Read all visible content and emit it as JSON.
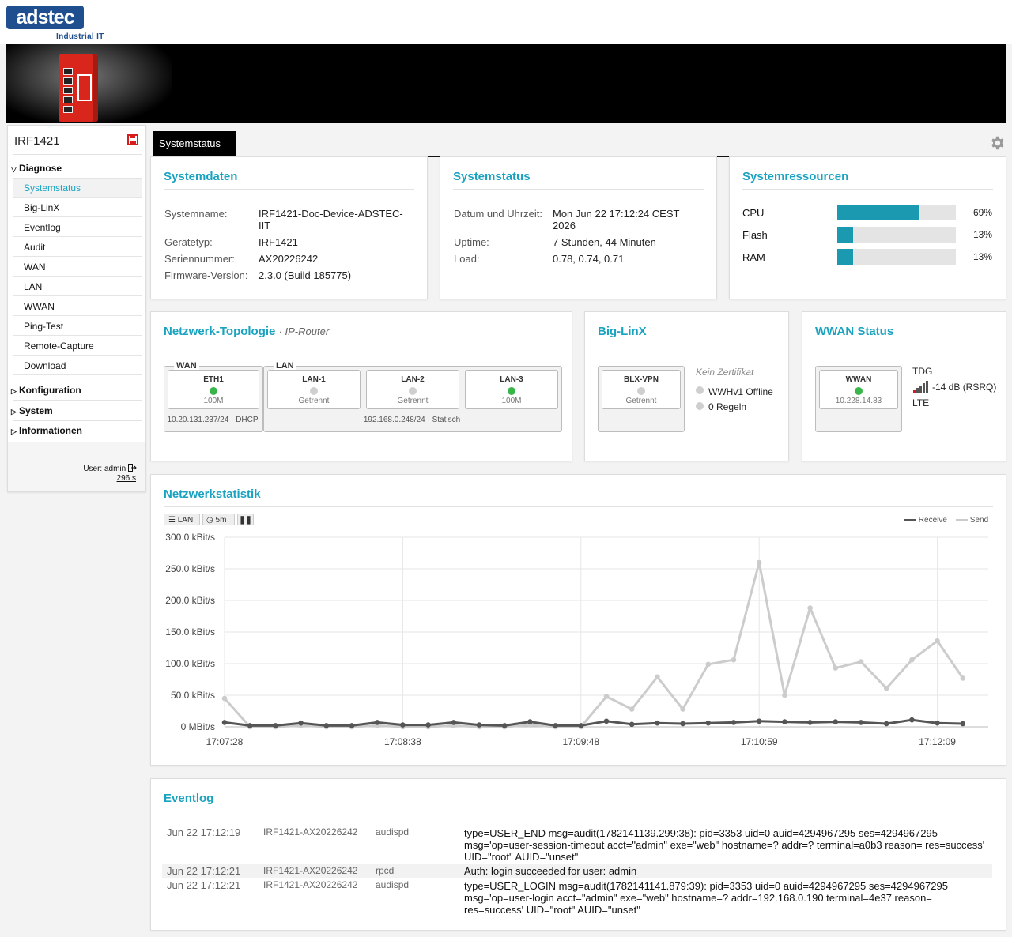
{
  "brand": {
    "logo": "adstec",
    "tagline": "Industrial IT"
  },
  "sidebar": {
    "device_name": "IRF1421",
    "groups": {
      "diagnose": "Diagnose",
      "konfiguration": "Konfiguration",
      "system": "System",
      "informationen": "Informationen"
    },
    "items": [
      "Systemstatus",
      "Big-LinX",
      "Eventlog",
      "Audit",
      "WAN",
      "LAN",
      "WWAN",
      "Ping-Test",
      "Remote-Capture",
      "Download"
    ],
    "active_item": "Systemstatus",
    "user": "User: admin",
    "timer": "296 s"
  },
  "tabs": {
    "active": "Systemstatus"
  },
  "systemdaten": {
    "title": "Systemdaten",
    "rows": [
      {
        "label": "Systemname:",
        "value": "IRF1421-Doc-Device-ADSTEC-IIT"
      },
      {
        "label": "Gerätetyp:",
        "value": "IRF1421"
      },
      {
        "label": "Seriennummer:",
        "value": "AX20226242"
      },
      {
        "label": "Firmware-Version:",
        "value": "2.3.0 (Build 185775)"
      }
    ]
  },
  "systemstatus": {
    "title": "Systemstatus",
    "rows": [
      {
        "label": "Datum und Uhrzeit:",
        "value": "Mon Jun 22 17:12:24 CEST 2026"
      },
      {
        "label": "Uptime:",
        "value": "7 Stunden, 44 Minuten"
      },
      {
        "label": "Load:",
        "value": "0.78, 0.74, 0.71"
      }
    ]
  },
  "systemressourcen": {
    "title": "Systemressourcen",
    "accent": "#1b99b1",
    "items": [
      {
        "label": "CPU",
        "percent": 69,
        "text": "69%"
      },
      {
        "label": "Flash",
        "percent": 13,
        "text": "13%"
      },
      {
        "label": "RAM",
        "percent": 13,
        "text": "13%"
      }
    ]
  },
  "topologie": {
    "title": "Netzwerk-Topologie",
    "subtitle": "· IP-Router",
    "wan_label": "WAN",
    "lan_label": "LAN",
    "ports": [
      {
        "name": "ETH1",
        "status": "100M",
        "state": "up"
      },
      {
        "name": "LAN-1",
        "status": "Getrennt",
        "state": "down"
      },
      {
        "name": "LAN-2",
        "status": "Getrennt",
        "state": "down"
      },
      {
        "name": "LAN-3",
        "status": "100M",
        "state": "up"
      }
    ],
    "wan_addr": "10.20.131.237/24 · DHCP",
    "lan_addr": "192.168.0.248/24 · Statisch"
  },
  "biglinx": {
    "title": "Big-LinX",
    "vpn_name": "BLX-VPN",
    "vpn_status": "Getrennt",
    "cert": "Kein Zertifikat",
    "lines": [
      "WWHv1 Offline",
      "0 Regeln"
    ]
  },
  "wwan": {
    "title": "WWAN Status",
    "name": "WWAN",
    "ip": "10.228.14.83",
    "provider": "TDG",
    "signal": "-14 dB (RSRQ)",
    "tech": "LTE"
  },
  "netzwerkstatistik": {
    "title": "Netzwerkstatistik",
    "toolbar": {
      "interface": "LAN",
      "interval": "5m"
    },
    "legend": {
      "receive": "Receive",
      "send": "Send"
    }
  },
  "chart_data": {
    "type": "line",
    "y_unit": "kBit/s",
    "ylim": [
      0,
      300
    ],
    "yticks": [
      "300.0 kBit/s",
      "250.0 kBit/s",
      "200.0 kBit/s",
      "150.0 kBit/s",
      "100.0 kBit/s",
      "50.0 kBit/s",
      "0 MBit/s"
    ],
    "xticks": [
      "17:07:28",
      "17:08:38",
      "17:09:48",
      "17:10:59",
      "17:12:09"
    ],
    "grid": true,
    "legend_position": "top-right",
    "colors": {
      "receive": "#555555",
      "send": "#cccccc"
    },
    "series": [
      {
        "name": "Receive",
        "values": [
          7,
          2,
          2,
          6,
          2,
          2,
          7,
          3,
          3,
          7,
          3,
          2,
          8,
          2,
          2,
          9,
          4,
          6,
          5,
          6,
          7,
          9,
          8,
          7,
          8,
          7,
          5,
          11,
          6,
          5
        ]
      },
      {
        "name": "Send",
        "values": [
          45,
          0,
          0,
          2,
          0,
          0,
          2,
          0,
          0,
          2,
          0,
          0,
          3,
          0,
          0,
          48,
          28,
          79,
          28,
          99,
          106,
          260,
          50,
          188,
          93,
          103,
          61,
          106,
          136,
          77
        ]
      }
    ]
  },
  "eventlog": {
    "title": "Eventlog",
    "rows": [
      {
        "date": "Jun 22 17:12:19",
        "host": "IRF1421-AX20226242",
        "proc": "audispd",
        "msg": "type=USER_END msg=audit(1782141139.299:38): pid=3353 uid=0 auid=4294967295 ses=4294967295 msg='op=user-session-timeout acct=\"admin\" exe=\"web\" hostname=? addr=? terminal=a0b3 reason= res=success' UID=\"root\" AUID=\"unset\""
      },
      {
        "date": "Jun 22 17:12:21",
        "host": "IRF1421-AX20226242",
        "proc": "rpcd",
        "msg": "Auth: login succeeded for user: admin"
      },
      {
        "date": "Jun 22 17:12:21",
        "host": "IRF1421-AX20226242",
        "proc": "audispd",
        "msg": "type=USER_LOGIN msg=audit(1782141141.879:39): pid=3353 uid=0 auid=4294967295 ses=4294967295 msg='op=user-login acct=\"admin\" exe=\"web\" hostname=? addr=192.168.0.190 terminal=4e37 reason= res=success' UID=\"root\" AUID=\"unset\""
      }
    ]
  }
}
